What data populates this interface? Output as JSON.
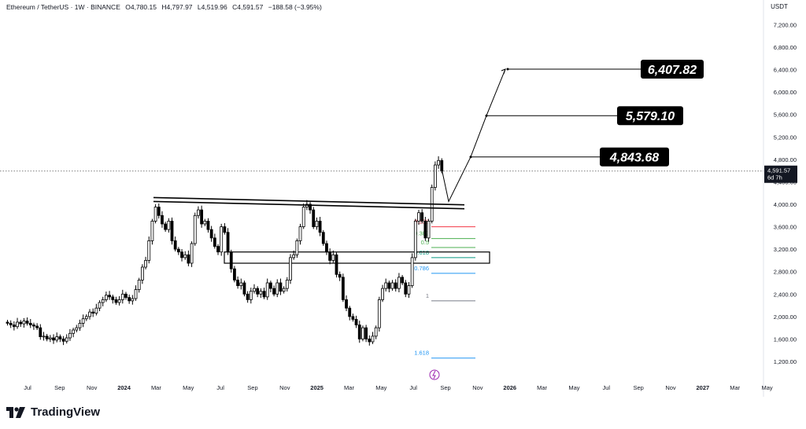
{
  "header": {
    "symbol": "Ethereum / TetherUS · 1W · BINANCE",
    "open": "O4,780.15",
    "high": "H4,797.97",
    "low": "L4,519.96",
    "close": "C4,591.57",
    "change": "−188.58 (−3.95%)"
  },
  "branding": {
    "name": "TradingView"
  },
  "price_axis": {
    "unit": "USDT",
    "current_price": "4,591.57",
    "countdown": "6d 7h"
  },
  "targets": [
    "4,843.68",
    "5,579.10",
    "6,407.82"
  ],
  "colors": {
    "up": "#ffffff",
    "down": "#000000",
    "wick": "#000000",
    "fib_red": "#f23645",
    "fib_green": "#4caf50",
    "fib_teal": "#089981",
    "fib_blue": "#2196f3",
    "fib_gray": "#787b86"
  },
  "chart_data": {
    "type": "candlestick",
    "symbol": "Ethereum / TetherUS",
    "timeframe": "1W",
    "exchange": "BINANCE",
    "ylim": [
      1000,
      7500
    ],
    "y_ticks": [
      1200,
      1600,
      2000,
      2400,
      2800,
      3200,
      3600,
      4000,
      4400,
      4800,
      5200,
      5600,
      6000,
      6400,
      6800,
      7200
    ],
    "y_tick_labels": [
      "1,200.00",
      "1,600.00",
      "2,000.00",
      "2,400.00",
      "2,800.00",
      "3,200.00",
      "3,600.00",
      "4,000.00",
      "4,400.00",
      "4,800.00",
      "5,200.00",
      "5,600.00",
      "6,000.00",
      "6,400.00",
      "6,800.00",
      "7,200.00"
    ],
    "x_labels": [
      "Jul",
      "Sep",
      "Nov",
      "2024",
      "Mar",
      "May",
      "Jul",
      "Sep",
      "Nov",
      "2025",
      "Mar",
      "May",
      "Jul",
      "Sep",
      "Nov",
      "2026",
      "Mar",
      "May",
      "Jul",
      "Sep",
      "Nov",
      "2027",
      "Mar",
      "May"
    ],
    "current_price": 4591.57,
    "candle_closes": [
      1880,
      1850,
      1820,
      1900,
      1870,
      1920,
      1880,
      1850,
      1830,
      1800,
      1640,
      1650,
      1600,
      1620,
      1580,
      1640,
      1600,
      1560,
      1620,
      1700,
      1760,
      1800,
      1880,
      1960,
      2000,
      2080,
      2060,
      2150,
      2250,
      2300,
      2380,
      2350,
      2300,
      2250,
      2300,
      2400,
      2340,
      2280,
      2320,
      2480,
      2650,
      2880,
      3000,
      3350,
      3700,
      3950,
      3800,
      3650,
      3550,
      3700,
      3350,
      3200,
      3150,
      3050,
      3100,
      2950,
      3300,
      3800,
      3900,
      3650,
      3700,
      3550,
      3400,
      3250,
      3150,
      3600,
      3500,
      3150,
      2850,
      2650,
      2550,
      2600,
      2400,
      2300,
      2450,
      2500,
      2400,
      2450,
      2350,
      2600,
      2500,
      2400,
      2600,
      2450,
      2500,
      2650,
      3050,
      3100,
      3350,
      3600,
      3950,
      4000,
      3900,
      3600,
      3700,
      3500,
      3300,
      3150,
      3000,
      3100,
      2750,
      2700,
      2300,
      2150,
      2000,
      1950,
      1850,
      1600,
      1800,
      1600,
      1550,
      1650,
      1800,
      2300,
      2500,
      2600,
      2500,
      2600,
      2500,
      2700,
      2600,
      2400,
      2550,
      3050,
      3700,
      3850,
      3700,
      3400,
      3700,
      4300,
      4700,
      4780,
      4591.57
    ],
    "trendlines": [
      {
        "name": "upper",
        "from": [
          "2024-Feb",
          4120
        ],
        "to": [
          "2025-Aug",
          3990
        ]
      },
      {
        "name": "lower",
        "from": [
          "2024-Feb",
          4050
        ],
        "to": [
          "2025-Aug",
          3920
        ]
      }
    ],
    "fib_levels": [
      {
        "label": "0.236",
        "price": 3600
      },
      {
        "label": "0.382",
        "price": 3390
      },
      {
        "label": "0.5",
        "price": 3230
      },
      {
        "label": "0.618",
        "price": 3050
      },
      {
        "label": "0.786",
        "price": 2770
      },
      {
        "label": "1",
        "price": 2280
      },
      {
        "label": "1.618",
        "price": 1260
      }
    ],
    "support_zone": [
      2950,
      3150
    ],
    "projection_path": [
      4591.57,
      4050,
      4843.68,
      5579.1,
      6407.82
    ],
    "targets": [
      4843.68,
      5579.1,
      6407.82
    ]
  }
}
